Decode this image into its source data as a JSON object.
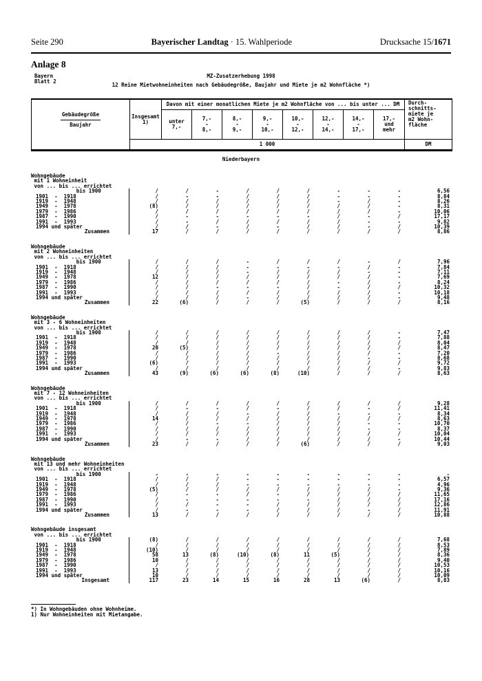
{
  "header": {
    "page": "Seite 290",
    "title_bold": "Bayerischer Landtag",
    "title_rest": " · 15. Wahlperiode",
    "doc_prefix": "Drucksache 15/",
    "doc_bold": "1671"
  },
  "anlage": "Anlage 8",
  "meta": {
    "region": "Bayern\nBlatt  2",
    "title1": "MZ-Zusatzerhebung 1998",
    "title2": "12 Reine Mietwohneinheiten nach Gebäudegröße, Baujahr und Miete je m2 Wohnfläche *)"
  },
  "table": {
    "stub_line1": "Gebäudegröße",
    "stub_line2": "Baujahr",
    "insgesamt_line1": "Insgesamt",
    "insgesamt_line2": "1)",
    "davon": "Davon mit einer monatlichen Miete je m2 Wohnfläche von ... bis unter ... DM",
    "ranges": [
      [
        "unter",
        "7,-"
      ],
      [
        "7,-",
        "-",
        "8,-"
      ],
      [
        "8,-",
        "-",
        "9,-"
      ],
      [
        "9,-",
        "-",
        "10,-"
      ],
      [
        "10,-",
        "-",
        "12,-"
      ],
      [
        "12,-",
        "-",
        "14,-"
      ],
      [
        "14,-",
        "-",
        "17,-"
      ],
      [
        "17,-",
        "und",
        "mehr"
      ]
    ],
    "avg_lines": [
      "Durch-",
      "schnitts-",
      "miete je",
      "m2 Wohn-",
      "fläche"
    ],
    "unit": "1 000",
    "unit_dm": "DM",
    "region_label": "Niederbayern",
    "sections": [
      {
        "heading": [
          "Wohngebäude",
          " mit 1 Wohneinheit",
          " von ... bis ... errichtet"
        ],
        "rows": [
          {
            "label": "             bis 1900",
            "values": [
              "/",
              "/",
              "-",
              "/",
              "/",
              "/",
              "-",
              "-",
              "-",
              "6,56"
            ]
          },
          {
            "label": "1901  -  1918",
            "values": [
              "/",
              "-",
              "-",
              "/",
              "/",
              "/",
              "-",
              "-",
              "-",
              "8,84"
            ]
          },
          {
            "label": "1919  -  1948",
            "values": [
              "/",
              "/",
              "/",
              "/",
              "/",
              "/",
              "-",
              "/",
              "-",
              "8,26"
            ]
          },
          {
            "label": "1949  -  1978",
            "values": [
              "(8)",
              "/",
              "/",
              "/",
              "/",
              "/",
              "/",
              "/",
              "-",
              "8,31"
            ]
          },
          {
            "label": "1979  -  1986",
            "values": [
              "/",
              "/",
              "/",
              "/",
              "/",
              "/",
              "/",
              "/",
              "-",
              "10,06"
            ]
          },
          {
            "label": "1987  -  1990",
            "values": [
              "/",
              "-",
              "-",
              "-",
              "-",
              "-",
              "/",
              "-",
              "/",
              "17,17"
            ]
          },
          {
            "label": "1991  -  1993",
            "values": [
              "/",
              "-",
              "/",
              "/",
              "/",
              "/",
              "/",
              "-",
              "-",
              "9,82"
            ]
          },
          {
            "label": "1994 und später",
            "values": [
              "/",
              "/",
              "-",
              "/",
              "-",
              "/",
              "/",
              "-",
              "/",
              "10,39"
            ]
          },
          {
            "label": "Zusammen",
            "total": true,
            "values": [
              "17",
              "/",
              "/",
              "/",
              "/",
              "/",
              "/",
              "/",
              "/",
              "8,86"
            ]
          }
        ]
      },
      {
        "heading": [
          "Wohngebäude",
          " mit 2 Wohneinheiten",
          " von ... bis ... errichtet"
        ],
        "rows": [
          {
            "label": "             bis 1900",
            "values": [
              "/",
              "/",
              "/",
              "-",
              "/",
              "/",
              "/",
              "-",
              "/",
              "7,96"
            ]
          },
          {
            "label": "1901  -  1918",
            "values": [
              "/",
              "/",
              "/",
              "-",
              "-",
              "-",
              "-",
              "/",
              "-",
              "7,84"
            ]
          },
          {
            "label": "1919  -  1948",
            "values": [
              "/",
              "/",
              "/",
              "-",
              "/",
              "/",
              "/",
              "-",
              "-",
              "7,11"
            ]
          },
          {
            "label": "1949  -  1978",
            "values": [
              "12",
              "/",
              "/",
              "/",
              "/",
              "/",
              "/",
              "/",
              "-",
              "7,69"
            ]
          },
          {
            "label": "1979  -  1986",
            "values": [
              "/",
              "/",
              "/",
              "/",
              "/",
              "/",
              "-",
              "/",
              "-",
              "8,24"
            ]
          },
          {
            "label": "1987  -  1990",
            "values": [
              "/",
              "/",
              "-",
              "-",
              "-",
              "/",
              "-",
              "/",
              "/",
              "10,32"
            ]
          },
          {
            "label": "1991  -  1993",
            "values": [
              "/",
              "/",
              "/",
              "/",
              "/",
              "/",
              "/",
              "/",
              "-",
              "10,18"
            ]
          },
          {
            "label": "1994 und später",
            "values": [
              "/",
              "/",
              "/",
              "-",
              "/",
              "/",
              "/",
              "/",
              "-",
              "9,48"
            ]
          },
          {
            "label": "Zusammen",
            "total": true,
            "values": [
              "22",
              "(6)",
              "/",
              "/",
              "/",
              "(5)",
              "/",
              "/",
              "/",
              "8,16"
            ]
          }
        ]
      },
      {
        "heading": [
          "Wohngebäude",
          " mit 3 - 6 Wohneinheiten",
          " von ... bis ... errichtet"
        ],
        "rows": [
          {
            "label": "             bis 1900",
            "values": [
              "/",
              "/",
              "/",
              "/",
              "/",
              "/",
              "/",
              "/",
              "-",
              "7,47"
            ]
          },
          {
            "label": "1901  -  1918",
            "values": [
              "/",
              "/",
              "/",
              "/",
              "/",
              "/",
              "/",
              "/",
              "-",
              "7,88"
            ]
          },
          {
            "label": "1919  -  1948",
            "values": [
              "/",
              "/",
              "/",
              "/",
              "/",
              "/",
              "/",
              "/",
              "/",
              "8,04"
            ]
          },
          {
            "label": "1949  -  1978",
            "values": [
              "20",
              "(5)",
              "/",
              "/",
              "/",
              "/",
              "/",
              "/",
              "/",
              "8,47"
            ]
          },
          {
            "label": "1979  -  1986",
            "values": [
              "/",
              "/",
              "/",
              "/",
              "-",
              "/",
              "/",
              "/",
              "-",
              "7,20"
            ]
          },
          {
            "label": "1987  -  1990",
            "values": [
              "/",
              "/",
              "/",
              "/",
              "/",
              "/",
              "/",
              "-",
              "-",
              "8,68"
            ]
          },
          {
            "label": "1991  -  1993",
            "values": [
              "(6)",
              "/",
              "/",
              "/",
              "/",
              "/",
              "/",
              "/",
              "/",
              "9,72"
            ]
          },
          {
            "label": "1994 und später",
            "values": [
              "/",
              "/",
              "/",
              "/",
              "/",
              "/",
              "/",
              "/",
              "-",
              "9,83"
            ]
          },
          {
            "label": "Zusammen",
            "total": true,
            "values": [
              "43",
              "(9)",
              "(6)",
              "(6)",
              "(8)",
              "(10)",
              "/",
              "/",
              "/",
              "8,63"
            ]
          }
        ]
      },
      {
        "heading": [
          "Wohngebäude",
          " mit 7 - 12 Wohneinheiten",
          " von ... bis ... errichtet"
        ],
        "rows": [
          {
            "label": "             bis 1900",
            "values": [
              "/",
              "/",
              "/",
              "/",
              "/",
              "/",
              "/",
              "/",
              "/",
              "9,28"
            ]
          },
          {
            "label": "1901  -  1918",
            "values": [
              "/",
              "-",
              "-",
              "/",
              "-",
              "/",
              "/",
              "-",
              "/",
              "11,41"
            ]
          },
          {
            "label": "1919  -  1948",
            "values": [
              "/",
              "/",
              "/",
              "-",
              "/",
              "/",
              "-",
              "-",
              "-",
              "8,34"
            ]
          },
          {
            "label": "1949  -  1978",
            "values": [
              "14",
              "/",
              "/",
              "/",
              "/",
              "/",
              "/",
              "/",
              "/",
              "8,63"
            ]
          },
          {
            "label": "1979  -  1986",
            "values": [
              "/",
              "/",
              "-",
              "-",
              "/",
              "/",
              "/",
              "-",
              "-",
              "10,70"
            ]
          },
          {
            "label": "1987  -  1990",
            "values": [
              "/",
              "/",
              "/",
              "/",
              "/",
              "/",
              "/",
              "-",
              "-",
              "8,37"
            ]
          },
          {
            "label": "1991  -  1993",
            "values": [
              "/",
              "/",
              "/",
              "/",
              "/",
              "/",
              "/",
              "/",
              "/",
              "10,04"
            ]
          },
          {
            "label": "1994 und später",
            "values": [
              "/",
              "-",
              "-",
              "/",
              "/",
              "/",
              "/",
              "/",
              "-",
              "10,44"
            ]
          },
          {
            "label": "Zusammen",
            "total": true,
            "values": [
              "23",
              "/",
              "/",
              "/",
              "/",
              "(6)",
              "/",
              "/",
              "/",
              "9,03"
            ]
          }
        ]
      },
      {
        "heading": [
          "Wohngebäude",
          " mit 13 und mehr Wohneinheiten",
          " von ... bis ... errichtet"
        ],
        "rows": [
          {
            "label": "             bis 1900",
            "values": [
              "-",
              "-",
              "-",
              "-",
              "-",
              "-",
              "-",
              "-",
              "-",
              "-"
            ]
          },
          {
            "label": "1901  -  1918",
            "values": [
              "/",
              "/",
              "/",
              "-",
              "-",
              "-",
              "-",
              "-",
              "-",
              "6,57"
            ]
          },
          {
            "label": "1919  -  1948",
            "values": [
              "/",
              "/",
              "/",
              "-",
              "-",
              "-",
              "-",
              "-",
              "-",
              "4,96"
            ]
          },
          {
            "label": "1949  -  1978",
            "values": [
              "(5)",
              "/",
              "/",
              "/",
              "/",
              "/",
              "/",
              "/",
              "-",
              "9,36"
            ]
          },
          {
            "label": "1979  -  1986",
            "values": [
              "/",
              "-",
              "-",
              "/",
              "-",
              "/",
              "/",
              "/",
              "/",
              "11,65"
            ]
          },
          {
            "label": "1987  -  1990",
            "values": [
              "/",
              "-",
              "-",
              "-",
              "-",
              "-",
              "/",
              "/",
              "/",
              "17,16"
            ]
          },
          {
            "label": "1991  -  1993",
            "values": [
              "/",
              "/",
              "-",
              "-",
              "/",
              "/",
              "/",
              "/",
              "/",
              "12,86"
            ]
          },
          {
            "label": "1994 und später",
            "values": [
              "/",
              "-",
              "-",
              "-",
              "/",
              "/",
              "/",
              "-",
              "/",
              "11,91"
            ]
          },
          {
            "label": "Zusammen",
            "total": true,
            "values": [
              "13",
              "/",
              "/",
              "/",
              "/",
              "/",
              "/",
              "/",
              "/",
              "10,88"
            ]
          }
        ]
      },
      {
        "heading": [
          "Wohngebäude insgesamt",
          " von ... bis ... errichtet"
        ],
        "rows": [
          {
            "label": "             bis 1900",
            "values": [
              "(8)",
              "/",
              "/",
              "/",
              "/",
              "/",
              "/",
              "/",
              "/",
              "7,68"
            ]
          },
          {
            "label": "1901  -  1918",
            "values": [
              "/",
              "/",
              "/",
              "/",
              "/",
              "/",
              "/",
              "/",
              "/",
              "8,53"
            ]
          },
          {
            "label": "1919  -  1948",
            "values": [
              "(10)",
              "/",
              "/",
              "/",
              "/",
              "/",
              "/",
              "/",
              "/",
              "7,89"
            ]
          },
          {
            "label": "1949  -  1978",
            "values": [
              "58",
              "13",
              "(8)",
              "(10)",
              "(8)",
              "11",
              "(5)",
              "/",
              "/",
              "8,36"
            ]
          },
          {
            "label": "1979  -  1986",
            "values": [
              "10",
              "/",
              "/",
              "/",
              "/",
              "/",
              "/",
              "/",
              "/",
              "9,40"
            ]
          },
          {
            "label": "1987  -  1990",
            "values": [
              "/",
              "/",
              "/",
              "/",
              "/",
              "/",
              "/",
              "/",
              "/",
              "10,53"
            ]
          },
          {
            "label": "1991  -  1993",
            "values": [
              "13",
              "/",
              "/",
              "/",
              "/",
              "/",
              "/",
              "/",
              "/",
              "10,16"
            ]
          },
          {
            "label": "1994 und später",
            "values": [
              "10",
              "/",
              "/",
              "/",
              "/",
              "/",
              "/",
              "/",
              "/",
              "10,09"
            ]
          },
          {
            "label": "Insgesamt",
            "total": true,
            "values": [
              "117",
              "23",
              "14",
              "15",
              "16",
              "28",
              "13",
              "(6)",
              "/",
              "8,83"
            ]
          }
        ]
      }
    ]
  },
  "footnotes": {
    "f1": "*) In Wohngebäuden ohne Wohnheime.",
    "f2": "1) Nur Wohneinheiten mit Mietangabe."
  }
}
